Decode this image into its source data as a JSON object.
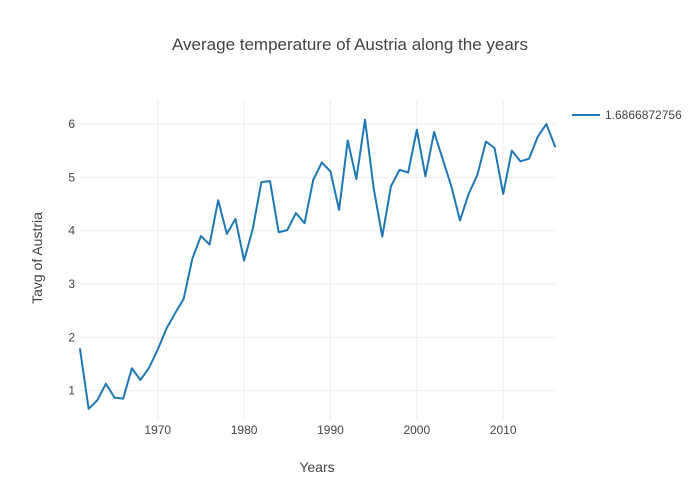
{
  "chart_data": {
    "type": "line",
    "title": "Average temperature of Austria along the years",
    "xlabel": "Years",
    "ylabel": "Tavg of Austria",
    "xlim": [
      1961,
      2016
    ],
    "ylim": [
      0.45,
      6.45
    ],
    "xticks": [
      1970,
      1980,
      1990,
      2000,
      2010
    ],
    "yticks": [
      1,
      2,
      3,
      4,
      5,
      6
    ],
    "grid": true,
    "legend_position": "top-right",
    "series": [
      {
        "name": "1.6866872756",
        "color": "#1f77b4",
        "x": [
          1961,
          1962,
          1963,
          1964,
          1965,
          1966,
          1967,
          1968,
          1969,
          1970,
          1971,
          1972,
          1973,
          1974,
          1975,
          1976,
          1977,
          1978,
          1979,
          1980,
          1981,
          1982,
          1983,
          1984,
          1985,
          1986,
          1987,
          1988,
          1989,
          1990,
          1991,
          1992,
          1993,
          1994,
          1995,
          1996,
          1997,
          1998,
          1999,
          2000,
          2001,
          2002,
          2003,
          2004,
          2005,
          2006,
          2007,
          2008,
          2009,
          2010,
          2011,
          2012,
          2013,
          2014,
          2015,
          2016
        ],
        "y": [
          1.78,
          0.66,
          0.82,
          1.13,
          0.87,
          0.85,
          1.42,
          1.2,
          1.43,
          1.77,
          2.16,
          2.45,
          2.72,
          3.47,
          3.9,
          3.74,
          4.57,
          3.94,
          4.22,
          3.44,
          4.03,
          4.91,
          4.93,
          3.97,
          4.01,
          4.33,
          4.14,
          4.95,
          5.28,
          5.11,
          4.39,
          5.69,
          4.97,
          6.08,
          4.8,
          3.89,
          4.83,
          5.14,
          5.09,
          5.89,
          5.02,
          5.85,
          5.34,
          4.83,
          4.19,
          4.69,
          5.04,
          5.67,
          5.55,
          4.69,
          5.5,
          5.3,
          5.35,
          5.76,
          6.0,
          5.58
        ]
      }
    ]
  }
}
